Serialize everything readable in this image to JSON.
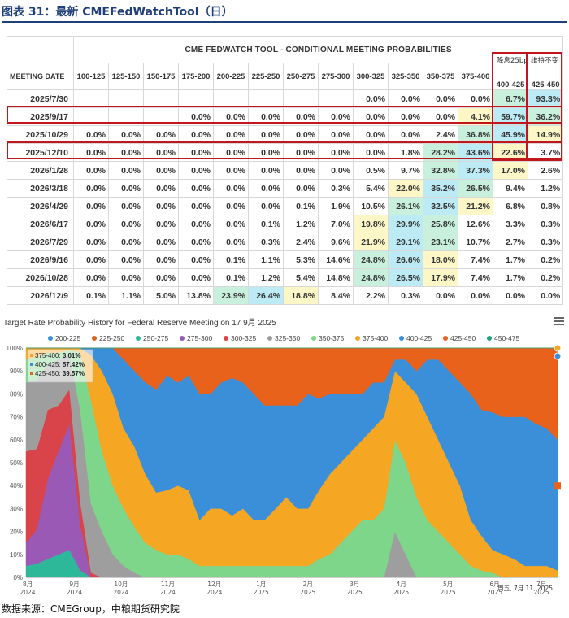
{
  "figure": {
    "title": "图表 31：最新 CMEFedWatchTool（日）",
    "source": "数据来源：CMEGroup，中粮期货研究院"
  },
  "table": {
    "title": "CME FEDWATCH TOOL - CONDITIONAL MEETING PROBABILITIES",
    "first_header": "MEETING DATE",
    "note_cut": "降息25bp",
    "note_hold": "维持不变",
    "columns": [
      "100-125",
      "125-150",
      "150-175",
      "175-200",
      "200-225",
      "225-250",
      "250-275",
      "275-300",
      "300-325",
      "325-350",
      "350-375",
      "375-400",
      "400-425",
      "425-450"
    ],
    "rows": [
      {
        "date": "2025/7/30",
        "cells": [
          "",
          "",
          "",
          "",
          "",
          "",
          "",
          "",
          "0.0%",
          "0.0%",
          "0.0%",
          "0.0%",
          "6.7%",
          "93.3%"
        ]
      },
      {
        "date": "2025/9/17",
        "cells": [
          "",
          "",
          "",
          "0.0%",
          "0.0%",
          "0.0%",
          "0.0%",
          "0.0%",
          "0.0%",
          "0.0%",
          "0.0%",
          "4.1%",
          "59.7%",
          "36.2%"
        ]
      },
      {
        "date": "2025/10/29",
        "cells": [
          "0.0%",
          "0.0%",
          "0.0%",
          "0.0%",
          "0.0%",
          "0.0%",
          "0.0%",
          "0.0%",
          "0.0%",
          "0.0%",
          "2.4%",
          "36.8%",
          "45.9%",
          "14.9%"
        ]
      },
      {
        "date": "2025/12/10",
        "cells": [
          "0.0%",
          "0.0%",
          "0.0%",
          "0.0%",
          "0.0%",
          "0.0%",
          "0.0%",
          "0.0%",
          "0.0%",
          "1.8%",
          "28.2%",
          "43.6%",
          "22.6%",
          "3.7%"
        ]
      },
      {
        "date": "2026/1/28",
        "cells": [
          "0.0%",
          "0.0%",
          "0.0%",
          "0.0%",
          "0.0%",
          "0.0%",
          "0.0%",
          "0.0%",
          "0.5%",
          "9.7%",
          "32.8%",
          "37.3%",
          "17.0%",
          "2.6%"
        ]
      },
      {
        "date": "2026/3/18",
        "cells": [
          "0.0%",
          "0.0%",
          "0.0%",
          "0.0%",
          "0.0%",
          "0.0%",
          "0.0%",
          "0.3%",
          "5.4%",
          "22.0%",
          "35.2%",
          "26.5%",
          "9.4%",
          "1.2%"
        ]
      },
      {
        "date": "2026/4/29",
        "cells": [
          "0.0%",
          "0.0%",
          "0.0%",
          "0.0%",
          "0.0%",
          "0.0%",
          "0.1%",
          "1.9%",
          "10.5%",
          "26.1%",
          "32.5%",
          "21.2%",
          "6.8%",
          "0.8%"
        ]
      },
      {
        "date": "2026/6/17",
        "cells": [
          "0.0%",
          "0.0%",
          "0.0%",
          "0.0%",
          "0.0%",
          "0.1%",
          "1.2%",
          "7.0%",
          "19.8%",
          "29.9%",
          "25.8%",
          "12.6%",
          "3.3%",
          "0.3%"
        ]
      },
      {
        "date": "2026/7/29",
        "cells": [
          "0.0%",
          "0.0%",
          "0.0%",
          "0.0%",
          "0.0%",
          "0.3%",
          "2.4%",
          "9.6%",
          "21.9%",
          "29.1%",
          "23.1%",
          "10.7%",
          "2.7%",
          "0.3%"
        ]
      },
      {
        "date": "2026/9/16",
        "cells": [
          "0.0%",
          "0.0%",
          "0.0%",
          "0.0%",
          "0.1%",
          "1.1%",
          "5.3%",
          "14.6%",
          "24.8%",
          "26.6%",
          "18.0%",
          "7.4%",
          "1.7%",
          "0.2%"
        ]
      },
      {
        "date": "2026/10/28",
        "cells": [
          "0.0%",
          "0.0%",
          "0.0%",
          "0.0%",
          "0.1%",
          "1.2%",
          "5.4%",
          "14.8%",
          "24.8%",
          "26.5%",
          "17.9%",
          "7.4%",
          "1.7%",
          "0.2%"
        ]
      },
      {
        "date": "2026/12/9",
        "cells": [
          "0.1%",
          "1.1%",
          "5.0%",
          "13.8%",
          "23.9%",
          "26.4%",
          "18.8%",
          "8.4%",
          "2.2%",
          "0.3%",
          "0.0%",
          "0.0%",
          "0.0%",
          "0.0%"
        ]
      }
    ],
    "colors": {
      "yellow": "#fdf7c8",
      "green": "#c9f0dd",
      "cyan": "#bcebf5",
      "highlight": "#c0161c"
    }
  },
  "chart_data": {
    "type": "area",
    "title": "Target Rate Probability History for Federal Reserve Meeting on 17 9月 2025",
    "stacked": true,
    "ylim": [
      0,
      100
    ],
    "yticks": [
      "0%",
      "10%",
      "20%",
      "30%",
      "40%",
      "50%",
      "60%",
      "70%",
      "80%",
      "90%",
      "100%"
    ],
    "xticks": [
      {
        "m": "8月",
        "y": "2024"
      },
      {
        "m": "9月",
        "y": "2024"
      },
      {
        "m": "10月",
        "y": "2024"
      },
      {
        "m": "11月",
        "y": "2024"
      },
      {
        "m": "12月",
        "y": "2024"
      },
      {
        "m": "1月",
        "y": "2025"
      },
      {
        "m": "2月",
        "y": "2025"
      },
      {
        "m": "3月",
        "y": "2025"
      },
      {
        "m": "4月",
        "y": "2025"
      },
      {
        "m": "5月",
        "y": "2025"
      },
      {
        "m": "6月",
        "y": "2025"
      },
      {
        "m": "7月",
        "y": "2025"
      }
    ],
    "x_marker_label": "周五, 7月 11, 2025",
    "tooltip": [
      {
        "label": "375-400",
        "value": "3.01%",
        "color": "#f5a623"
      },
      {
        "label": "400-425",
        "value": "57.42%",
        "color": "#3b8fd9"
      },
      {
        "label": "425-450",
        "value": "39.57%",
        "color": "#e8621c"
      }
    ],
    "series": [
      {
        "name": "200-225",
        "color": "#3b8fd9",
        "values": [
          0,
          0,
          0,
          0,
          0,
          0,
          0,
          0,
          0,
          0,
          0,
          0,
          0,
          0,
          0,
          0,
          0,
          0,
          0,
          0,
          0,
          0,
          0,
          0,
          0,
          0,
          0,
          0,
          0,
          0,
          0,
          0,
          0,
          0,
          0,
          0,
          0,
          0,
          0,
          0,
          0,
          0,
          0,
          0,
          0,
          0,
          0,
          0,
          0,
          0
        ]
      },
      {
        "name": "225-250",
        "color": "#e8621c",
        "values": [
          0,
          0,
          0,
          0,
          0,
          0,
          0,
          0,
          0,
          0,
          0,
          0,
          0,
          0,
          0,
          0,
          0,
          0,
          0,
          0,
          0,
          0,
          0,
          0,
          0,
          0,
          0,
          0,
          0,
          0,
          0,
          0,
          0,
          0,
          0,
          0,
          0,
          0,
          0,
          0,
          0,
          0,
          0,
          0,
          0,
          0,
          0,
          0,
          0,
          0
        ]
      },
      {
        "name": "250-275",
        "color": "#2eb89a",
        "values": [
          5,
          6,
          8,
          10,
          12,
          3,
          0,
          0,
          0,
          0,
          0,
          0,
          0,
          0,
          0,
          0,
          0,
          0,
          0,
          0,
          0,
          0,
          0,
          0,
          0,
          0,
          0,
          0,
          0,
          0,
          0,
          0,
          0,
          0,
          0,
          0,
          0,
          0,
          0,
          0,
          0,
          0,
          0,
          0,
          0,
          0,
          0,
          0,
          0,
          0
        ]
      },
      {
        "name": "275-300",
        "color": "#9b59b6",
        "values": [
          10,
          15,
          35,
          45,
          55,
          20,
          0,
          0,
          0,
          0,
          0,
          0,
          0,
          0,
          0,
          0,
          0,
          0,
          0,
          0,
          0,
          0,
          0,
          0,
          0,
          0,
          0,
          0,
          0,
          0,
          0,
          0,
          0,
          0,
          0,
          0,
          0,
          0,
          0,
          0,
          0,
          0,
          0,
          0,
          0,
          0,
          0,
          0,
          0,
          0
        ]
      },
      {
        "name": "300-325",
        "color": "#d9434a",
        "values": [
          40,
          35,
          30,
          20,
          15,
          10,
          2,
          0,
          0,
          0,
          0,
          0,
          0,
          0,
          0,
          0,
          0,
          0,
          0,
          0,
          0,
          0,
          0,
          0,
          0,
          0,
          0,
          0,
          0,
          0,
          0,
          0,
          0,
          0,
          0,
          0,
          0,
          0,
          0,
          0,
          0,
          0,
          0,
          0,
          0,
          0,
          0,
          0,
          0,
          0
        ]
      },
      {
        "name": "325-350",
        "color": "#9e9e9e",
        "values": [
          30,
          30,
          20,
          20,
          15,
          40,
          30,
          20,
          10,
          5,
          2,
          0,
          0,
          0,
          0,
          0,
          0,
          0,
          0,
          0,
          0,
          0,
          0,
          0,
          0,
          0,
          0,
          0,
          0,
          0,
          0,
          0,
          0,
          0,
          20,
          10,
          0,
          0,
          0,
          0,
          0,
          0,
          0,
          0,
          0,
          0,
          0,
          0,
          0,
          0
        ]
      },
      {
        "name": "350-375",
        "color": "#7ed68a",
        "values": [
          10,
          10,
          5,
          3,
          2,
          25,
          45,
          35,
          30,
          25,
          20,
          15,
          12,
          10,
          10,
          8,
          5,
          5,
          5,
          5,
          5,
          5,
          5,
          5,
          5,
          5,
          5,
          8,
          10,
          15,
          20,
          25,
          25,
          30,
          40,
          40,
          35,
          25,
          20,
          15,
          10,
          5,
          3,
          2,
          0,
          0,
          0,
          0,
          0,
          0
        ]
      },
      {
        "name": "375-400",
        "color": "#f5a623",
        "values": [
          5,
          4,
          2,
          2,
          1,
          2,
          20,
          35,
          40,
          35,
          35,
          30,
          25,
          28,
          30,
          30,
          20,
          25,
          25,
          22,
          25,
          20,
          20,
          25,
          30,
          25,
          25,
          30,
          35,
          35,
          35,
          35,
          40,
          40,
          30,
          35,
          45,
          45,
          40,
          35,
          30,
          20,
          15,
          10,
          10,
          8,
          5,
          5,
          5,
          3
        ]
      },
      {
        "name": "400-425",
        "color": "#3b8fd9",
        "values": [
          0,
          0,
          0,
          0,
          0,
          0,
          3,
          10,
          20,
          30,
          33,
          40,
          45,
          50,
          45,
          50,
          55,
          50,
          55,
          60,
          55,
          55,
          50,
          45,
          40,
          45,
          50,
          40,
          35,
          30,
          25,
          20,
          20,
          15,
          5,
          10,
          10,
          25,
          35,
          40,
          45,
          55,
          55,
          60,
          60,
          62,
          65,
          62,
          60,
          57
        ]
      },
      {
        "name": "425-450",
        "color": "#e8621c",
        "values": [
          0,
          0,
          0,
          0,
          0,
          0,
          0,
          0,
          0,
          5,
          10,
          15,
          18,
          12,
          15,
          12,
          20,
          20,
          15,
          13,
          15,
          20,
          25,
          25,
          25,
          25,
          20,
          22,
          20,
          20,
          20,
          20,
          15,
          15,
          5,
          5,
          10,
          5,
          5,
          10,
          15,
          20,
          27,
          28,
          30,
          30,
          30,
          33,
          35,
          40
        ]
      },
      {
        "name": "450-475",
        "color": "#22a07a",
        "values": [
          0,
          0,
          0,
          0,
          0,
          0,
          0,
          0,
          0,
          0,
          0,
          0,
          0,
          0,
          0,
          0,
          0,
          0,
          0,
          0,
          0,
          0,
          0,
          0,
          0,
          0,
          0,
          0,
          0,
          0,
          0,
          0,
          0,
          0,
          0,
          0,
          0,
          0,
          0,
          0,
          0,
          0,
          0,
          0,
          0,
          0,
          0,
          0,
          0,
          0
        ]
      }
    ]
  }
}
